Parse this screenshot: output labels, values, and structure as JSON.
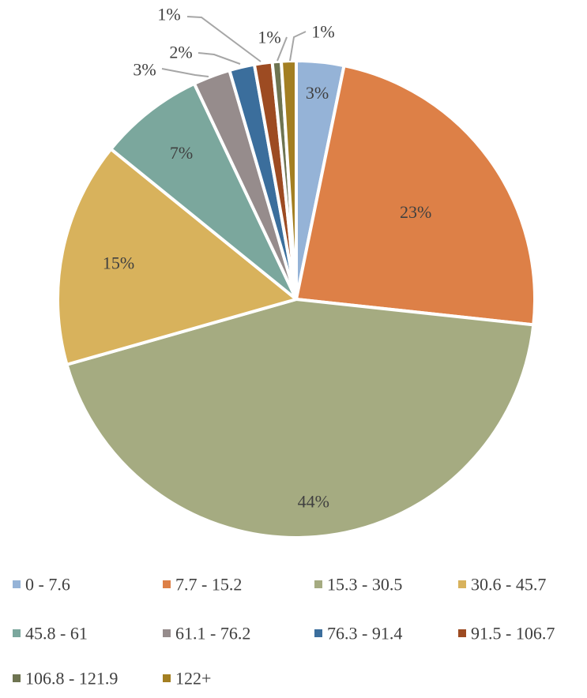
{
  "chart_data": {
    "type": "pie",
    "title": "",
    "categories": [
      "0 - 7.6",
      "7.7 - 15.2",
      "15.3 - 30.5",
      "30.6 - 45.7",
      "45.8 - 61",
      "61.1 - 76.2",
      "76.3 - 91.4",
      "91.5 - 106.7",
      "106.8 - 121.9",
      "122+"
    ],
    "values": [
      3,
      23,
      44,
      15,
      7,
      3,
      2,
      1,
      1,
      1
    ],
    "slice_sizes": [
      3.2,
      23.4,
      43.7,
      15.2,
      7.1,
      2.5,
      1.7,
      1.2,
      0.6,
      1.0
    ],
    "labels": [
      "3%",
      "23%",
      "44%",
      "15%",
      "7%",
      "3%",
      "2%",
      "1%",
      "1%",
      "1%"
    ],
    "colors": [
      "#95b3d7",
      "#dd8047",
      "#a5ab81",
      "#d8b25c",
      "#7ba79d",
      "#968c8c",
      "#3b6e9c",
      "#9d4b22",
      "#6e7451",
      "#a37f22"
    ],
    "legend": "bottom"
  }
}
